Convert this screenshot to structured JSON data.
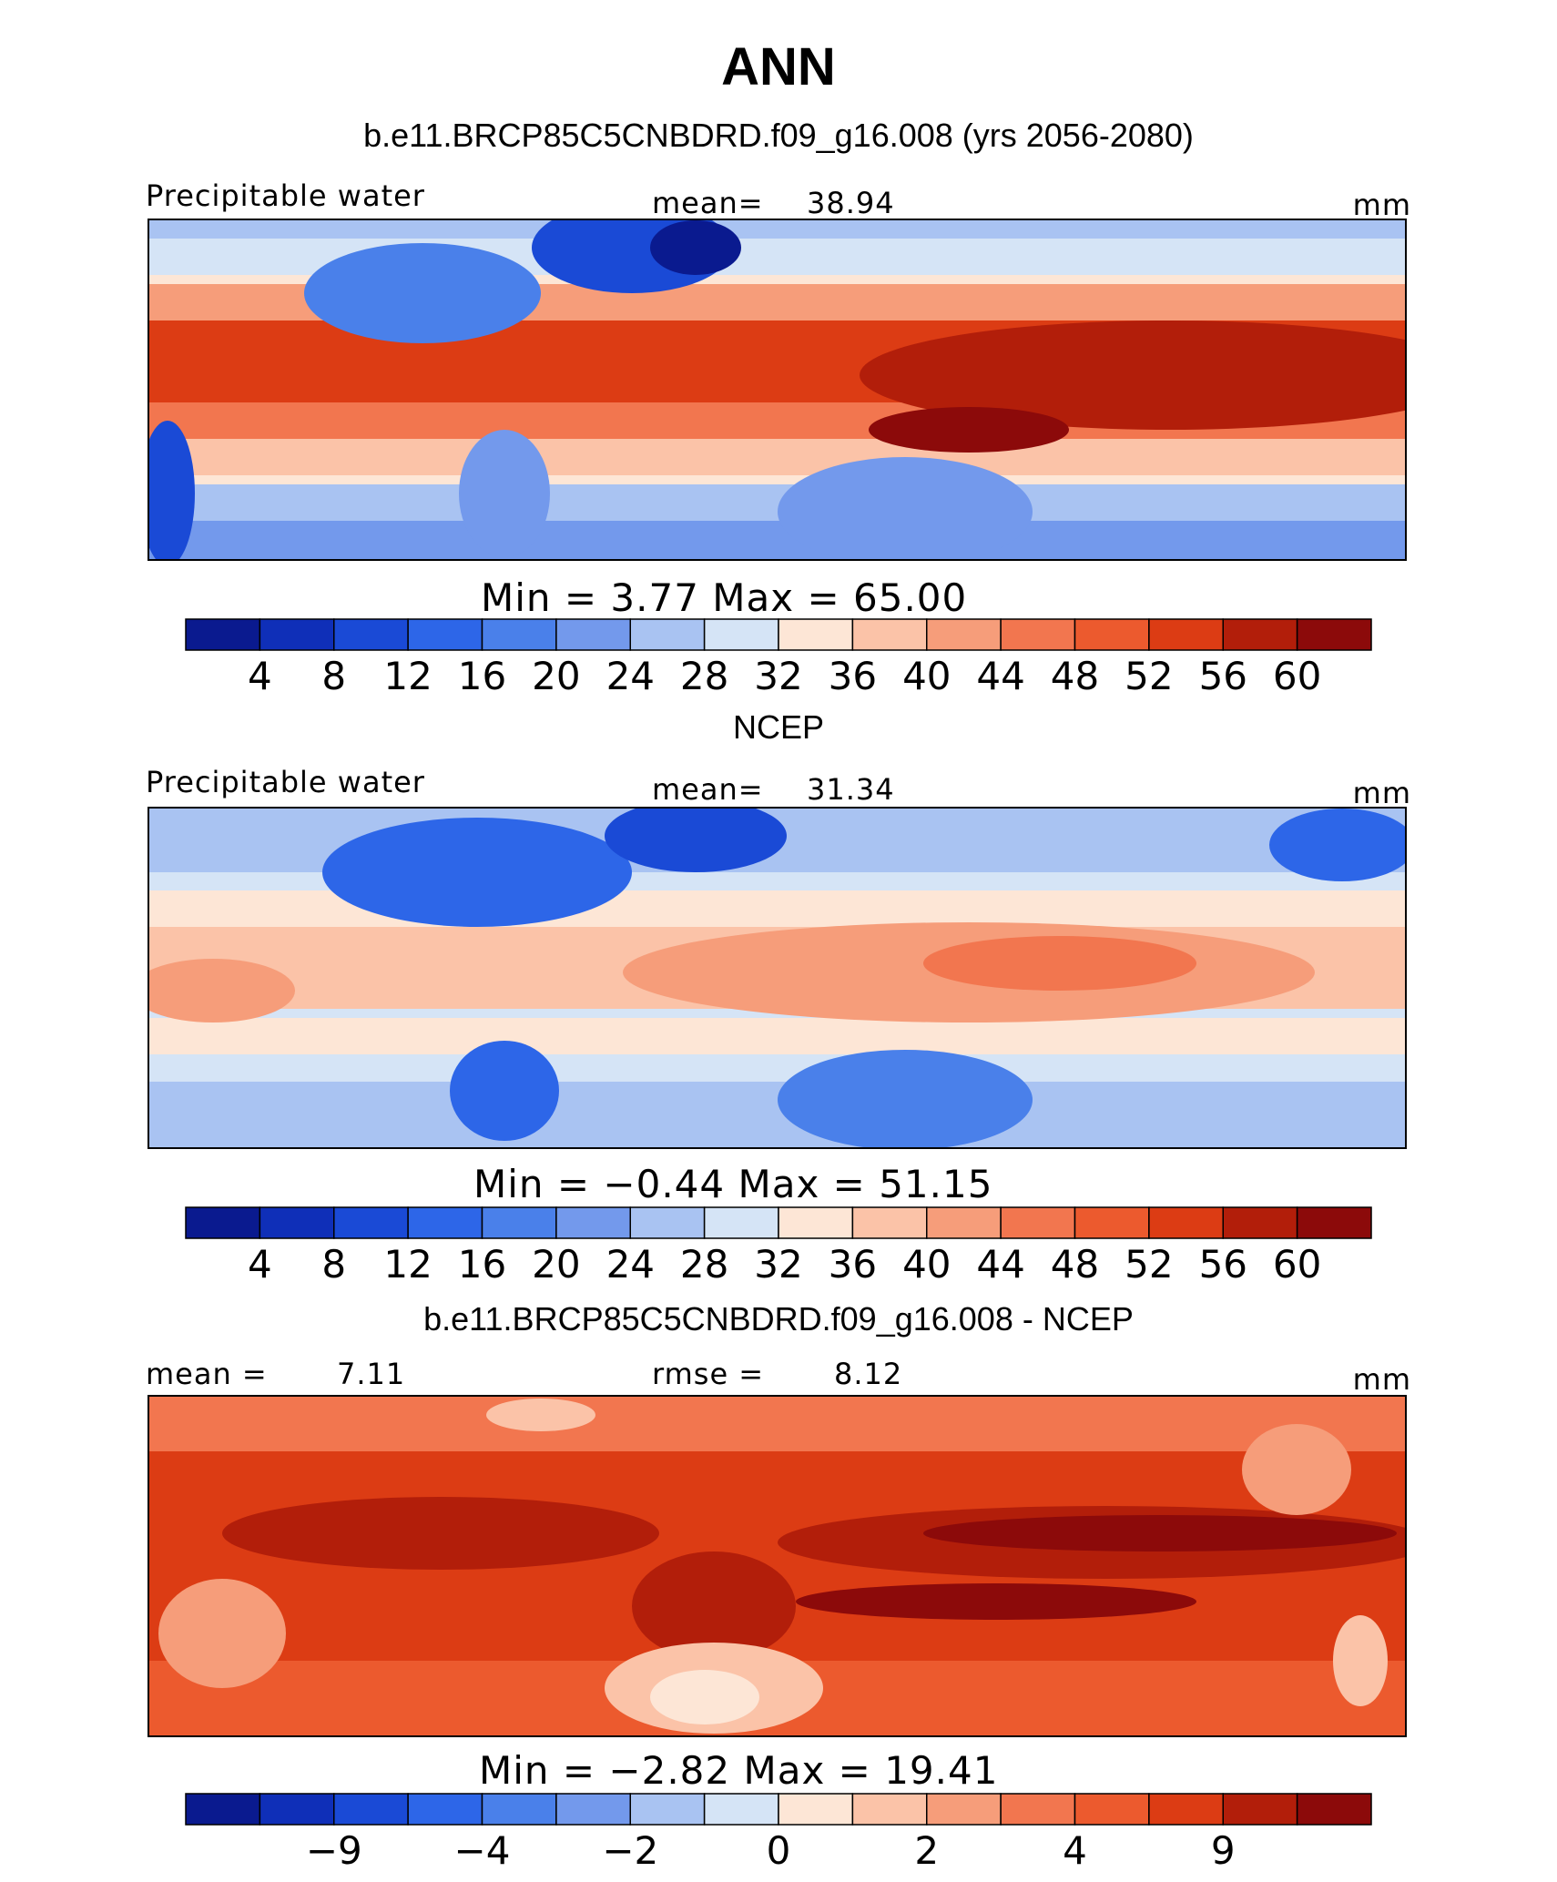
{
  "title": "ANN",
  "chart_data": [
    {
      "type": "heatmap",
      "title": "b.e11.BRCP85C5CNBDRD.f09_g16.008 (yrs 2056-2080)",
      "field_label": "Precipitable water",
      "stat1_label": "mean=",
      "stat1_value": "38.94",
      "stat2_label": "",
      "stat2_value": "",
      "units": "mm",
      "range_text": "Min =    3.77  Max =   65.00",
      "min": 3.77,
      "max": 65.0,
      "colorbar_ticks": [
        "4",
        "8",
        "12",
        "16",
        "20",
        "24",
        "28",
        "32",
        "36",
        "40",
        "44",
        "48",
        "52",
        "56",
        "60"
      ]
    },
    {
      "type": "heatmap",
      "title": "NCEP",
      "field_label": "Precipitable water",
      "stat1_label": "mean=",
      "stat1_value": "31.34",
      "stat2_label": "",
      "stat2_value": "",
      "units": "mm",
      "range_text": "Min =  −0.44  Max =   51.15",
      "min": -0.44,
      "max": 51.15,
      "colorbar_ticks": [
        "4",
        "8",
        "12",
        "16",
        "20",
        "24",
        "28",
        "32",
        "36",
        "40",
        "44",
        "48",
        "52",
        "56",
        "60"
      ]
    },
    {
      "type": "heatmap",
      "title": "b.e11.BRCP85C5CNBDRD.f09_g16.008 - NCEP",
      "field_label": "mean =",
      "stat1_label": "7.11",
      "stat1_value": "",
      "stat2_label": "rmse =",
      "stat2_value": "8.12",
      "units": "mm",
      "range_text": "Min =  −2.82  Max =   19.41",
      "min": -2.82,
      "max": 19.41,
      "colorbar_ticks": [
        "−9",
        "−4",
        "−2",
        "0",
        "2",
        "4",
        "9"
      ]
    }
  ],
  "colormap": [
    "#0a1a8f",
    "#0f2fb8",
    "#1a4ad6",
    "#2d66e8",
    "#4a80ea",
    "#7399ec",
    "#a9c3f2",
    "#d5e4f6",
    "#fde6d6",
    "#fbc3a8",
    "#f69d7a",
    "#f2764f",
    "#ec5a2e",
    "#dc3c14",
    "#b21e0a",
    "#8c0a0a"
  ]
}
